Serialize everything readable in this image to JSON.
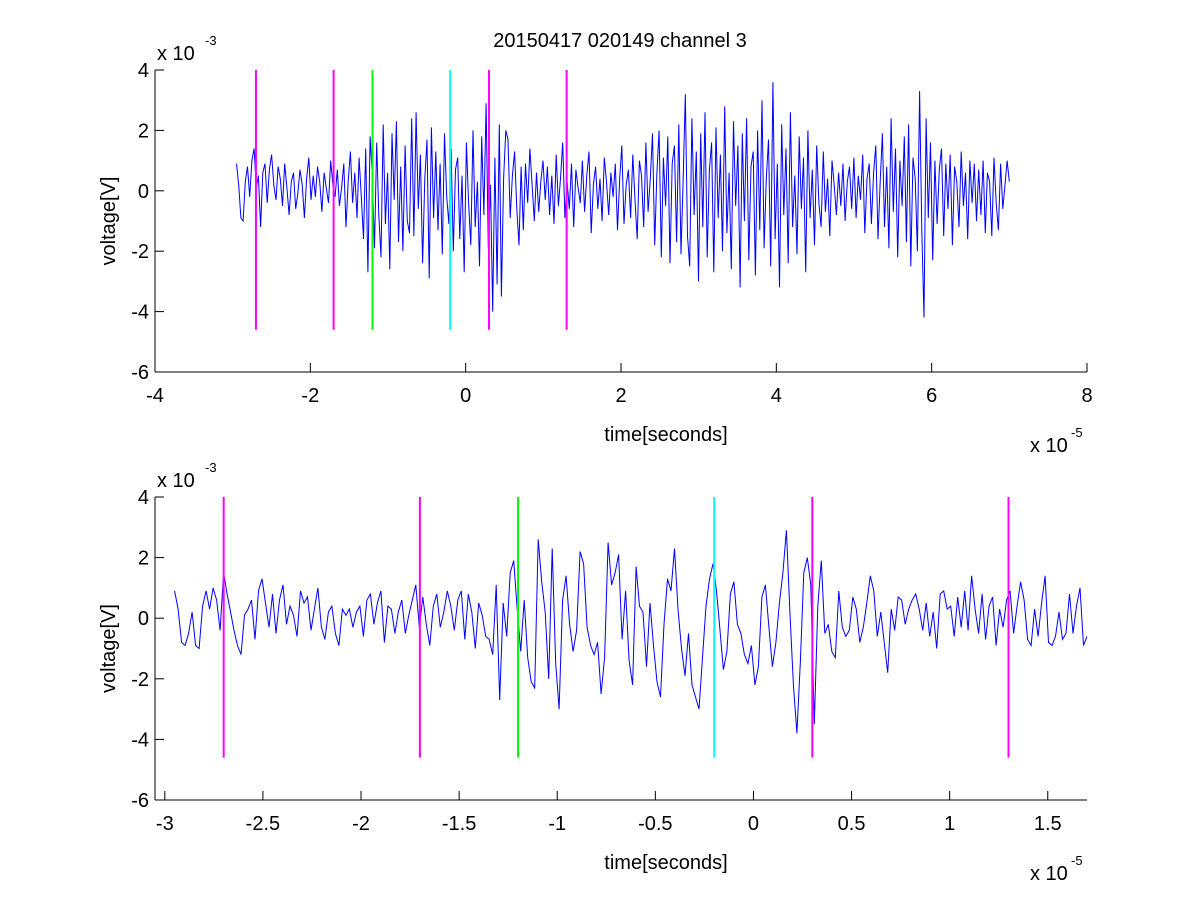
{
  "figure": {
    "title": "20150417 020149 channel 3",
    "background": "#ffffff"
  },
  "chart_data": [
    {
      "type": "line",
      "title": "20150417 020149 channel 3",
      "xlabel": "time[seconds]",
      "ylabel": "voltage[V]",
      "x_multiplier": {
        "base": "x 10",
        "exponent": "-5"
      },
      "y_multiplier": {
        "base": "x 10",
        "exponent": "-3"
      },
      "xlim": [
        -4,
        8
      ],
      "ylim": [
        -6,
        4
      ],
      "xticks": [
        -4,
        -2,
        0,
        2,
        4,
        6,
        8
      ],
      "xtick_labels": [
        "-4",
        "-2",
        "0",
        "2",
        "4",
        "6",
        "8"
      ],
      "yticks": [
        -6,
        -4,
        -2,
        0,
        2,
        4
      ],
      "ytick_labels": [
        "-6",
        "-4",
        "-2",
        "0",
        "2",
        "4"
      ],
      "grid": false,
      "series_color": "#0000ff",
      "series": [
        {
          "x_range": [
            -2.95,
            7.0
          ],
          "x_step": 0.05,
          "values": [
            0.9,
            0.2,
            -0.9,
            -1.0,
            0.3,
            0.8,
            -0.2,
            1.0,
            1.4,
            0.1,
            0.5,
            -1.2,
            0.6,
            0.9,
            -0.4,
            0.7,
            1.2,
            0.2,
            -0.3,
            0.8,
            0.4,
            -0.5,
            0.9,
            0.1,
            -0.8,
            0.3,
            0.6,
            -0.6,
            -0.1,
            0.7,
            0.2,
            -0.9,
            0.4,
            1.1,
            -0.3,
            0.5,
            -0.2,
            0.8,
            0.3,
            -0.7,
            0.6,
            0.1,
            -0.4,
            1.0,
            0.2,
            -0.2,
            0.7,
            -0.5,
            0.1,
            0.9,
            -1.2,
            0.3,
            1.3,
            -0.4,
            0.6,
            -0.9,
            1.1,
            -0.2,
            -1.6,
            1.4,
            -2.7,
            1.8,
            0.5,
            -1.9,
            1.6,
            -0.8,
            -2.2,
            2.2,
            -1.1,
            0.6,
            -2.6,
            1.9,
            -0.3,
            2.3,
            -1.7,
            0.8,
            -2.0,
            1.5,
            -1.0,
            -1.4,
            2.4,
            -1.5,
            2.6,
            -0.6,
            1.2,
            -2.4,
            0.4,
            1.7,
            -2.9,
            2.1,
            -0.9,
            1.3,
            -1.3,
            0.9,
            -2.1,
            1.9,
            -0.2,
            -1.1,
            1.4,
            -2.0,
            0.7,
            1.1,
            -1.6,
            0.5,
            -2.7,
            1.6,
            -0.4,
            -1.8,
            2.0,
            -1.2,
            0.3,
            -2.5,
            1.8,
            -0.8,
            2.9,
            -1.9,
            0.2,
            -4.0,
            1.1,
            -3.1,
            2.2,
            -3.5,
            0.4,
            2.0,
            1.7,
            -0.9,
            0.5,
            1.3,
            -0.6,
            -1.8,
            0.8,
            -1.3,
            0.9,
            -0.4,
            1.4,
            0.2,
            -1.0,
            0.6,
            -0.7,
            0.3,
            1.0,
            -0.3,
            0.8,
            -0.8,
            0.5,
            -1.1,
            1.2,
            -0.5,
            0.4,
            1.6,
            -0.9,
            0.3,
            -0.6,
            0.9,
            -1.2,
            0.7,
            0.1,
            -0.4,
            1.0,
            -0.7,
            0.5,
            1.3,
            -1.4,
            0.2,
            0.8,
            -0.6,
            0.4,
            -1.0,
            1.1,
            0.3,
            -0.8,
            0.6,
            -0.2,
            0.9,
            -1.3,
            0.4,
            1.5,
            -1.1,
            0.2,
            0.7,
            -0.9,
            1.2,
            -0.3,
            -1.6,
            1.0,
            0.5,
            -1.2,
            1.6,
            -0.7,
            0.4,
            1.9,
            -1.8,
            0.6,
            2.0,
            -2.2,
            1.1,
            -0.5,
            1.8,
            -2.4,
            0.9,
            1.5,
            -1.7,
            2.2,
            -2.1,
            0.3,
            3.2,
            -1.5,
            -2.5,
            2.4,
            -0.8,
            1.3,
            -3.0,
            1.9,
            -1.2,
            2.6,
            -2.2,
            0.7,
            1.6,
            -2.7,
            2.1,
            -0.9,
            1.2,
            -2.0,
            2.8,
            -1.4,
            0.6,
            -2.6,
            2.3,
            -0.5,
            1.5,
            -3.2,
            1.9,
            -1.0,
            2.4,
            -2.3,
            0.8,
            1.3,
            -2.8,
            2.0,
            -1.3,
            3.0,
            -1.9,
            0.4,
            1.7,
            -2.5,
            3.6,
            -1.6,
            0.9,
            -3.2,
            2.2,
            -0.8,
            1.4,
            -2.4,
            2.6,
            -1.2,
            0.5,
            -2.1,
            1.8,
            -0.6,
            1.1,
            -2.7,
            2.0,
            -0.9,
            0.7,
            -1.8,
            1.5,
            -0.4,
            -1.2,
            1.3,
            -0.7,
            0.4,
            -1.5,
            1.0,
            0.2,
            -0.8,
            0.6,
            -0.5,
            0.9,
            -1.0,
            0.3,
            0.8,
            -0.6,
            1.1,
            -0.9,
            0.5,
            -0.3,
            1.2,
            -1.4,
            0.4,
            0.9,
            -1.1,
            0.6,
            1.5,
            -1.6,
            0.3,
            1.9,
            -1.2,
            0.8,
            -1.9,
            2.4,
            -0.7,
            1.4,
            -2.2,
            1.0,
            -0.5,
            1.8,
            -1.7,
            2.2,
            -2.5,
            1.1,
            0.4,
            -2.0,
            3.3,
            -1.3,
            -4.2,
            2.4,
            -0.9,
            1.6,
            -2.3,
            1.0,
            -1.1,
            0.7,
            1.4,
            -1.5,
            0.9,
            -0.6,
            1.2,
            -1.8,
            0.8,
            0.3,
            -1.2,
            1.3,
            -0.5,
            0.6,
            -1.6,
            1.0,
            -0.4,
            0.9,
            -1.0,
            0.7,
            -0.8,
            1.0,
            -1.4,
            0.6,
            0.3,
            -1.5,
            1.1,
            -0.4,
            -1.3,
            0.9,
            -0.6,
            0.2,
            1.0,
            0.3
          ]
        }
      ],
      "markers": [
        {
          "x": -2.7,
          "color": "#ff00ff"
        },
        {
          "x": -1.7,
          "color": "#ff00ff"
        },
        {
          "x": -1.2,
          "color": "#00ff00"
        },
        {
          "x": -0.2,
          "color": "#00ffff"
        },
        {
          "x": 0.3,
          "color": "#ff00ff"
        },
        {
          "x": 1.3,
          "color": "#ff00ff"
        }
      ],
      "marker_y_range": [
        -4.6,
        4.0
      ]
    },
    {
      "type": "line",
      "title": "",
      "xlabel": "time[seconds]",
      "ylabel": "voltage[V]",
      "x_multiplier": {
        "base": "x 10",
        "exponent": "-5"
      },
      "y_multiplier": {
        "base": "x 10",
        "exponent": "-3"
      },
      "xlim": [
        -3.05,
        1.7
      ],
      "ylim": [
        -6,
        4
      ],
      "xticks": [
        -3,
        -2.5,
        -2,
        -1.5,
        -1,
        -0.5,
        0,
        0.5,
        1,
        1.5
      ],
      "xtick_labels": [
        "-3",
        "-2.5",
        "-2",
        "-1.5",
        "-1",
        "-0.5",
        "0",
        "0.5",
        "1",
        "1.5"
      ],
      "yticks": [
        -6,
        -4,
        -2,
        0,
        2,
        4
      ],
      "ytick_labels": [
        "-6",
        "-4",
        "-2",
        "0",
        "2",
        "4"
      ],
      "grid": false,
      "series_color": "#0000ff",
      "series": [
        {
          "x_range": [
            -2.95,
            1.7
          ],
          "x_step": 0.02,
          "values": [
            0.9,
            0.3,
            -0.8,
            -0.9,
            -0.5,
            0.2,
            -0.9,
            -1.0,
            0.4,
            0.9,
            0.3,
            1.0,
            0.6,
            -0.4,
            1.5,
            0.8,
            0.2,
            -0.4,
            -0.9,
            -1.2,
            0.1,
            0.3,
            0.6,
            -0.7,
            0.9,
            1.3,
            0.5,
            -0.3,
            0.8,
            -0.5,
            0.6,
            1.1,
            -0.2,
            0.4,
            0.1,
            -0.6,
            0.9,
            0.5,
            0.7,
            -0.4,
            0.3,
            1.0,
            -0.3,
            -0.7,
            0.2,
            0.4,
            -0.5,
            -0.9,
            0.3,
            0.1,
            0.3,
            -0.3,
            0.2,
            0.4,
            -0.6,
            0.6,
            0.8,
            -0.2,
            0.5,
            0.9,
            -0.8,
            0.4,
            0.3,
            -0.5,
            0.2,
            0.6,
            -0.5,
            0.1,
            0.6,
            1.1,
            -0.3,
            0.7,
            -0.2,
            -0.9,
            0.4,
            0.8,
            -0.3,
            0.2,
            0.9,
            0.4,
            -0.4,
            0.6,
            0.9,
            -0.7,
            0.8,
            0.2,
            -1.0,
            0.5,
            0.1,
            -0.6,
            -0.7,
            -1.2,
            1.1,
            -2.7,
            0.5,
            -0.6,
            1.5,
            1.9,
            0.3,
            -1.1,
            0.6,
            -1.3,
            -2.1,
            -2.3,
            2.6,
            1.2,
            0.2,
            -2.0,
            2.3,
            -1.5,
            -3.0,
            0.6,
            1.4,
            -0.2,
            -1.1,
            -0.4,
            2.2,
            1.8,
            -0.3,
            -0.9,
            -1.2,
            -0.8,
            -2.5,
            -1.3,
            2.5,
            1.1,
            1.5,
            2.1,
            -0.7,
            0.9,
            -1.4,
            -2.2,
            1.7,
            0.4,
            0.2,
            -1.6,
            0.5,
            -0.9,
            -2.1,
            -2.6,
            -0.2,
            1.3,
            0.9,
            2.3,
            0.3,
            -1.0,
            -1.9,
            -0.5,
            -2.2,
            -2.6,
            -3.0,
            -1.3,
            0.4,
            1.3,
            1.8,
            0.9,
            -0.4,
            -1.7,
            -1.1,
            0.8,
            1.2,
            -0.2,
            -0.5,
            -1.2,
            -1.5,
            -0.9,
            -2.2,
            -1.6,
            0.7,
            1.1,
            -0.3,
            -1.6,
            -0.8,
            0.5,
            1.5,
            2.9,
            0.2,
            -2.2,
            -3.8,
            -1.4,
            1.5,
            2.0,
            1.1,
            -3.5,
            0.4,
            1.9,
            -0.5,
            -0.2,
            -1.1,
            -1.3,
            0.9,
            -0.3,
            -0.6,
            -0.4,
            0.7,
            0.3,
            -0.8,
            -0.3,
            0.5,
            1.4,
            0.9,
            -0.6,
            0.2,
            -0.8,
            -1.8,
            0.3,
            -0.4,
            0.7,
            0.6,
            -0.2,
            0.3,
            0.6,
            0.8,
            0.3,
            -0.4,
            0.5,
            -0.6,
            0.2,
            -1.0,
            0.8,
            0.9,
            0.3,
            0.4,
            -0.6,
            0.7,
            -0.3,
            0.9,
            -0.4,
            1.4,
            0.3,
            -0.5,
            0.8,
            -0.7,
            0.4,
            0.7,
            -0.9,
            0.3,
            -0.3,
            0.6,
            0.9,
            -0.5,
            0.4,
            1.2,
            0.6,
            -0.7,
            -0.9,
            0.3,
            -0.6,
            0.5,
            1.4,
            -0.8,
            -0.9,
            -0.6,
            0.2,
            -0.7,
            -0.5,
            0.8,
            -0.5,
            0.4,
            1.0,
            -0.9,
            -0.6
          ]
        }
      ],
      "markers": [
        {
          "x": -2.7,
          "color": "#ff00ff"
        },
        {
          "x": -1.7,
          "color": "#ff00ff"
        },
        {
          "x": -1.2,
          "color": "#00ff00"
        },
        {
          "x": -0.2,
          "color": "#00ffff"
        },
        {
          "x": 0.3,
          "color": "#ff00ff"
        },
        {
          "x": 1.3,
          "color": "#ff00ff"
        }
      ],
      "marker_y_range": [
        -4.6,
        4.0
      ]
    }
  ]
}
